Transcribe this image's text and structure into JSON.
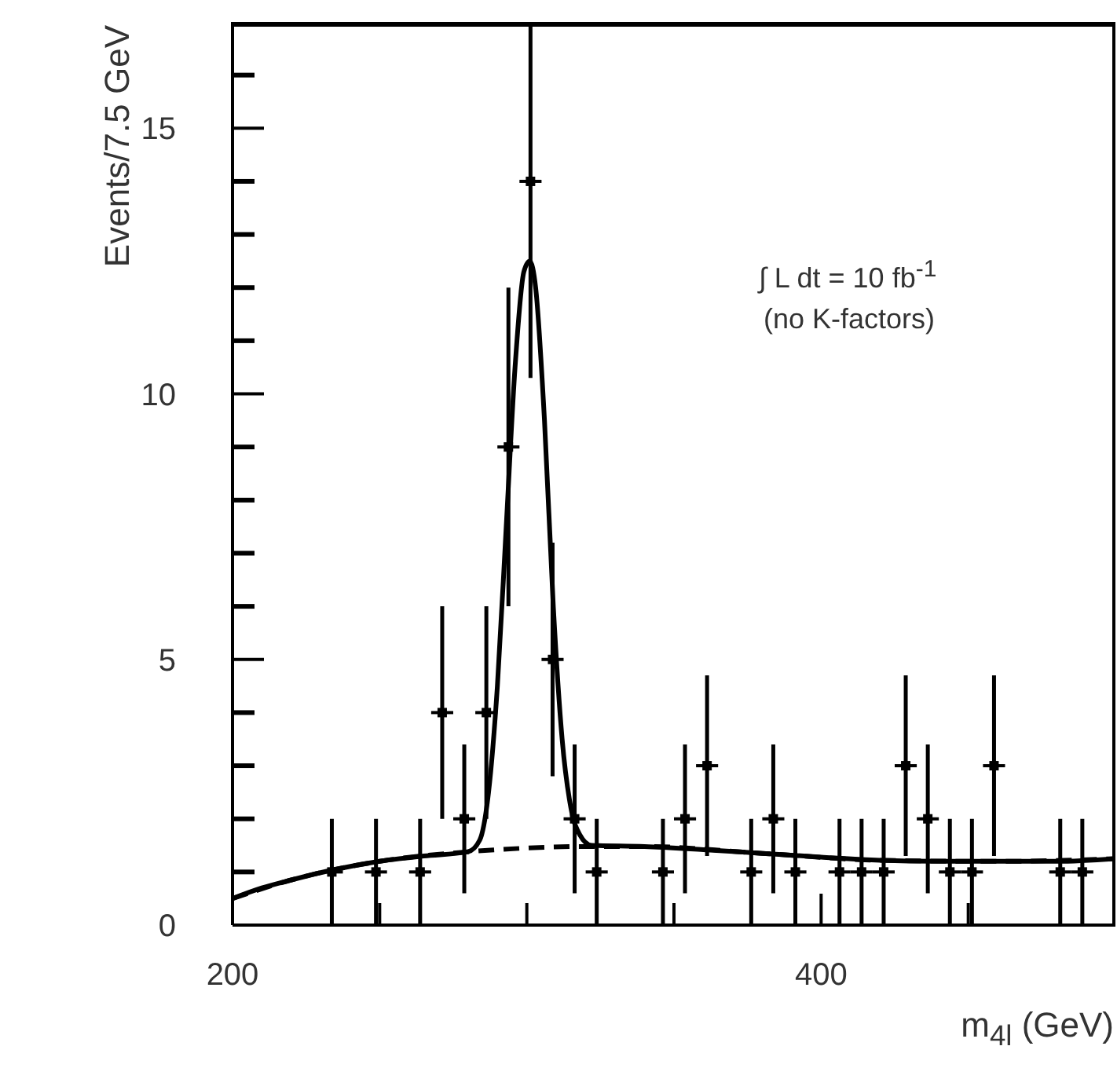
{
  "chart_data": {
    "type": "scatter",
    "xlabel": "m$_{4l}$ (GeV)",
    "ylabel": "Events/7.5 GeV",
    "annotations": [
      "∫ L dt = 10 fb$^{-1}$",
      "(no K-factors)"
    ],
    "xlim": [
      200,
      500
    ],
    "ylim": [
      0,
      17
    ],
    "xticks": [
      200,
      {
        "value": 250,
        "label": null
      },
      {
        "value": 300,
        "label": null
      },
      {
        "value": 350,
        "label": null
      },
      400,
      {
        "value": 450,
        "label": null
      }
    ],
    "yticks": [
      0,
      {
        "value": 1,
        "label": null
      },
      {
        "value": 2,
        "label": null
      },
      {
        "value": 3,
        "label": null
      },
      {
        "value": 4,
        "label": null
      },
      5,
      {
        "value": 6,
        "label": null
      },
      {
        "value": 7,
        "label": null
      },
      {
        "value": 8,
        "label": null
      },
      {
        "value": 9,
        "label": null
      },
      10,
      {
        "value": 11,
        "label": null
      },
      {
        "value": 12,
        "label": null
      },
      {
        "value": 13,
        "label": null
      },
      {
        "value": 14,
        "label": null
      },
      15,
      {
        "value": 16,
        "label": null
      }
    ],
    "series": [
      {
        "type": "scatter",
        "color": "#000000",
        "marker": "square",
        "x": [
          233.75,
          248.75,
          263.75,
          271.25,
          278.75,
          286.25,
          293.75,
          301.25,
          308.75,
          316.25,
          323.75,
          346.25,
          353.75,
          361.25,
          376.25,
          383.75,
          391.25,
          406.25,
          413.75,
          421.25,
          428.75,
          436.25,
          443.75,
          451.25,
          458.75,
          481.25,
          488.75
        ],
        "values": [
          1,
          1,
          1,
          4,
          2,
          4,
          9,
          14,
          5,
          2,
          1,
          1,
          2,
          3,
          1,
          2,
          1,
          1,
          1,
          1,
          3,
          2,
          1,
          1,
          3,
          1,
          1
        ],
        "errors": [
          1,
          1,
          1,
          2,
          1.4,
          2,
          3,
          [
            10.3,
            17
          ],
          2.2,
          1.4,
          1,
          1,
          1.4,
          1.7,
          1,
          1.4,
          1,
          1,
          1,
          1,
          1.7,
          1.4,
          1,
          1,
          1.7,
          1,
          1
        ],
        "xerrors": [
          3.75,
          3.75,
          3.75,
          3.75,
          3.75,
          3.75,
          3.75,
          3.75,
          3.75,
          3.75,
          3.75,
          3.75,
          3.75,
          3.75,
          3.75,
          3.75,
          3.75,
          3.75,
          3.75,
          3.75,
          3.75,
          3.75,
          3.75,
          3.75,
          3.75,
          3.75,
          3.75
        ]
      },
      {
        "type": "line",
        "color": "#000000",
        "line_style": "dashed",
        "x": [
          200,
          220,
          250,
          280,
          300,
          320,
          340,
          380,
          420,
          460,
          500
        ],
        "values": [
          0.5,
          0.85,
          1.2,
          1.38,
          1.45,
          1.48,
          1.48,
          1.35,
          1.22,
          1.2,
          1.25
        ]
      },
      {
        "type": "line",
        "color": "#000000",
        "line_style": "solid",
        "x": [
          200,
          210,
          220,
          235,
          250,
          265,
          280,
          284,
          287,
          290,
          293,
          296,
          299,
          301,
          303,
          306,
          309,
          312,
          315,
          318,
          322,
          340,
          360,
          380,
          400,
          420,
          440,
          460,
          480,
          500
        ],
        "values": [
          0.5,
          0.7,
          0.85,
          1.05,
          1.2,
          1.3,
          1.38,
          1.6,
          2.5,
          4.5,
          7.5,
          10.5,
          12.3,
          12.5,
          12,
          9.5,
          6,
          3.5,
          2.2,
          1.7,
          1.5,
          1.48,
          1.42,
          1.35,
          1.28,
          1.22,
          1.2,
          1.2,
          1.2,
          1.25
        ]
      }
    ]
  }
}
